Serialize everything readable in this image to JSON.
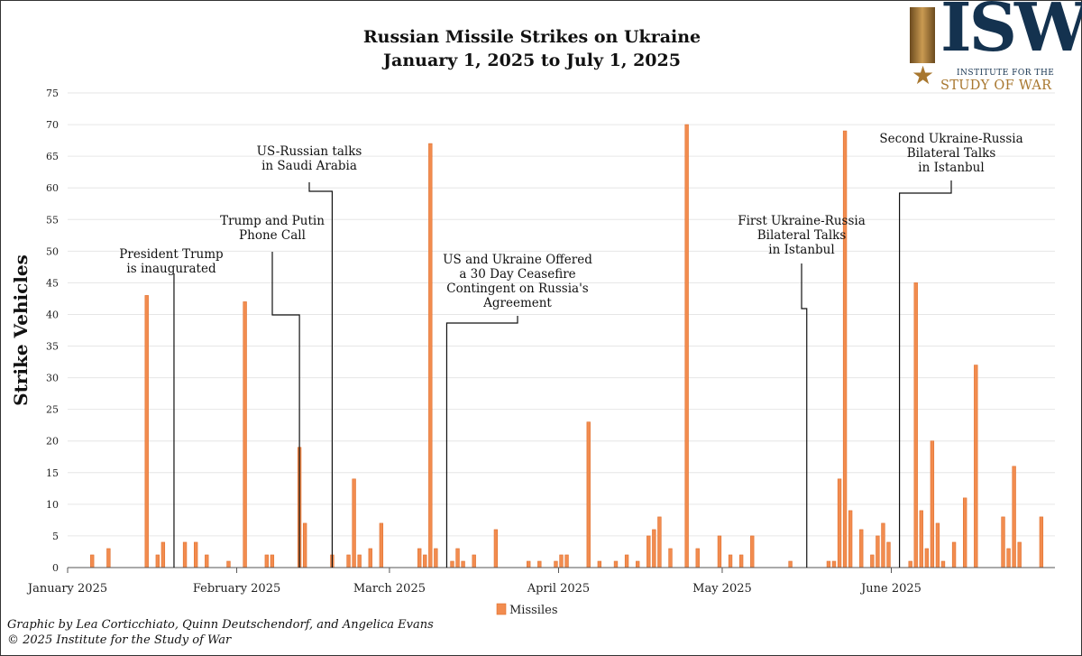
{
  "title_line1": "Russian Missile Strikes on Ukraine",
  "title_line2": "January 1, 2025 to July 1, 2025",
  "credit_line1": "Graphic by Lea Corticchiato, Quinn Deutschendorf, and Angelica Evans",
  "credit_line2": "© 2025 Institute for the Study of War",
  "logo": {
    "text": "ISW",
    "line1": "INSTITUTE FOR THE",
    "line2": "STUDY OF WAR",
    "color_primary": "#14324f",
    "color_accent": "#a8772f"
  },
  "chart_data": {
    "type": "bar",
    "ylabel": "Strike Vehicles",
    "ylim": [
      0,
      75
    ],
    "yticks": [
      0,
      5,
      10,
      15,
      20,
      25,
      30,
      35,
      40,
      45,
      50,
      55,
      60,
      65,
      70,
      75
    ],
    "xlim": [
      "2025-01-01",
      "2025-06-30"
    ],
    "xticks": [
      {
        "date": "2025-01-01",
        "label": "January 2025"
      },
      {
        "date": "2025-02-01",
        "label": "February 2025"
      },
      {
        "date": "2025-03-01",
        "label": "March 2025"
      },
      {
        "date": "2025-04-01",
        "label": "April 2025"
      },
      {
        "date": "2025-05-01",
        "label": "May 2025"
      },
      {
        "date": "2025-06-01",
        "label": "June 2025"
      }
    ],
    "grid": true,
    "legend_position": "bottom",
    "series": [
      {
        "name": "Missiles",
        "color": "#f28c4f",
        "points": [
          {
            "date": "2025-01-05",
            "value": 2
          },
          {
            "date": "2025-01-08",
            "value": 3
          },
          {
            "date": "2025-01-15",
            "value": 43
          },
          {
            "date": "2025-01-17",
            "value": 2
          },
          {
            "date": "2025-01-18",
            "value": 4
          },
          {
            "date": "2025-01-22",
            "value": 4
          },
          {
            "date": "2025-01-24",
            "value": 4
          },
          {
            "date": "2025-01-26",
            "value": 2
          },
          {
            "date": "2025-01-30",
            "value": 1
          },
          {
            "date": "2025-02-02",
            "value": 42
          },
          {
            "date": "2025-02-06",
            "value": 2
          },
          {
            "date": "2025-02-07",
            "value": 2
          },
          {
            "date": "2025-02-12",
            "value": 19
          },
          {
            "date": "2025-02-13",
            "value": 7
          },
          {
            "date": "2025-02-18",
            "value": 2
          },
          {
            "date": "2025-02-21",
            "value": 2
          },
          {
            "date": "2025-02-22",
            "value": 14
          },
          {
            "date": "2025-02-23",
            "value": 2
          },
          {
            "date": "2025-02-25",
            "value": 3
          },
          {
            "date": "2025-02-27",
            "value": 7
          },
          {
            "date": "2025-03-06",
            "value": 3
          },
          {
            "date": "2025-03-07",
            "value": 2
          },
          {
            "date": "2025-03-08",
            "value": 67
          },
          {
            "date": "2025-03-09",
            "value": 3
          },
          {
            "date": "2025-03-12",
            "value": 1
          },
          {
            "date": "2025-03-13",
            "value": 3
          },
          {
            "date": "2025-03-14",
            "value": 1
          },
          {
            "date": "2025-03-16",
            "value": 2
          },
          {
            "date": "2025-03-20",
            "value": 6
          },
          {
            "date": "2025-03-26",
            "value": 1
          },
          {
            "date": "2025-03-28",
            "value": 1
          },
          {
            "date": "2025-03-31",
            "value": 1
          },
          {
            "date": "2025-04-01",
            "value": 2
          },
          {
            "date": "2025-04-02",
            "value": 2
          },
          {
            "date": "2025-04-06",
            "value": 23
          },
          {
            "date": "2025-04-08",
            "value": 1
          },
          {
            "date": "2025-04-11",
            "value": 1
          },
          {
            "date": "2025-04-13",
            "value": 2
          },
          {
            "date": "2025-04-15",
            "value": 1
          },
          {
            "date": "2025-04-17",
            "value": 5
          },
          {
            "date": "2025-04-18",
            "value": 6
          },
          {
            "date": "2025-04-19",
            "value": 8
          },
          {
            "date": "2025-04-21",
            "value": 3
          },
          {
            "date": "2025-04-24",
            "value": 70
          },
          {
            "date": "2025-04-26",
            "value": 3
          },
          {
            "date": "2025-04-30",
            "value": 5
          },
          {
            "date": "2025-05-02",
            "value": 2
          },
          {
            "date": "2025-05-04",
            "value": 2
          },
          {
            "date": "2025-05-06",
            "value": 5
          },
          {
            "date": "2025-05-13",
            "value": 1
          },
          {
            "date": "2025-05-20",
            "value": 1
          },
          {
            "date": "2025-05-21",
            "value": 1
          },
          {
            "date": "2025-05-22",
            "value": 14
          },
          {
            "date": "2025-05-23",
            "value": 69
          },
          {
            "date": "2025-05-24",
            "value": 9
          },
          {
            "date": "2025-05-26",
            "value": 6
          },
          {
            "date": "2025-05-28",
            "value": 2
          },
          {
            "date": "2025-05-29",
            "value": 5
          },
          {
            "date": "2025-05-30",
            "value": 7
          },
          {
            "date": "2025-05-31",
            "value": 4
          },
          {
            "date": "2025-06-04",
            "value": 1
          },
          {
            "date": "2025-06-05",
            "value": 45
          },
          {
            "date": "2025-06-06",
            "value": 9
          },
          {
            "date": "2025-06-07",
            "value": 3
          },
          {
            "date": "2025-06-08",
            "value": 20
          },
          {
            "date": "2025-06-09",
            "value": 7
          },
          {
            "date": "2025-06-10",
            "value": 1
          },
          {
            "date": "2025-06-12",
            "value": 4
          },
          {
            "date": "2025-06-14",
            "value": 11
          },
          {
            "date": "2025-06-16",
            "value": 32
          },
          {
            "date": "2025-06-21",
            "value": 8
          },
          {
            "date": "2025-06-22",
            "value": 3
          },
          {
            "date": "2025-06-23",
            "value": 16
          },
          {
            "date": "2025-06-24",
            "value": 4
          },
          {
            "date": "2025-06-28",
            "value": 8
          }
        ]
      }
    ],
    "annotations": [
      {
        "id": "inauguration",
        "lines": [
          "President Trump",
          "is inaugurated"
        ],
        "date": "2025-01-20",
        "top_value": 46.5
      },
      {
        "id": "trump-putin-call",
        "lines": [
          "Trump and Putin",
          "Phone Call"
        ],
        "date": "2025-02-12",
        "top_value": 50
      },
      {
        "id": "us-russia-saudi",
        "lines": [
          "US-Russian talks",
          "in Saudi Arabia"
        ],
        "date": "2025-02-18",
        "top_value": 60.5
      },
      {
        "id": "ceasefire-offer",
        "lines": [
          "US and Ukraine Offered",
          "a 30 Day Ceasefire",
          "Contingent on Russia's",
          "Agreement"
        ],
        "date": "2025-03-11",
        "top_value": 38.5
      },
      {
        "id": "first-istanbul",
        "lines": [
          "First Ukraine-Russia",
          "Bilateral Talks",
          "in Istanbul"
        ],
        "date": "2025-05-16",
        "top_value": 47.5
      },
      {
        "id": "second-istanbul",
        "lines": [
          "Second Ukraine-Russia",
          "Bilateral Talks",
          "in Istanbul"
        ],
        "date": "2025-06-02",
        "top_value": 59.5
      }
    ]
  }
}
